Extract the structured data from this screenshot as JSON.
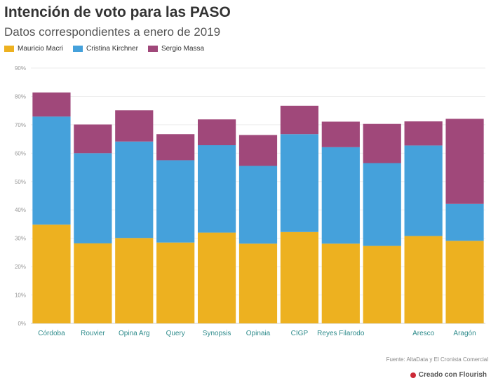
{
  "header": {
    "title": "Intención de voto para las PASO",
    "subtitle": "Datos correspondientes a enero de 2019"
  },
  "footer": {
    "source": "Fuente: AltaData y El Cronista Comercial",
    "flourish": "Creado con Flourish"
  },
  "colors": {
    "macri": "#edb120",
    "kirchner": "#45a1db",
    "massa": "#a0487a"
  },
  "chart_data": {
    "type": "bar",
    "stacked": true,
    "categories": [
      "Córdoba",
      "Rouvier",
      "Opina Arg",
      "Query",
      "Synopsis",
      "Opinaia",
      "CIGP",
      "Reyes Filarodo",
      "",
      "Aresco",
      "Aragón"
    ],
    "series": [
      {
        "name": "Mauricio Macri",
        "values": [
          34.8,
          28.2,
          30.1,
          28.5,
          32.0,
          28.1,
          32.2,
          28.1,
          27.3,
          30.8,
          29.1
        ]
      },
      {
        "name": "Cristina Kirchner",
        "values": [
          38.1,
          31.8,
          34.0,
          29.0,
          30.8,
          27.4,
          34.5,
          34.0,
          29.2,
          31.9,
          13.0
        ]
      },
      {
        "name": "Sergio Massa",
        "values": [
          8.5,
          10.1,
          11.0,
          9.2,
          9.1,
          10.9,
          10.0,
          9.0,
          13.8,
          8.5,
          30.0
        ]
      }
    ],
    "ylim": [
      0,
      90
    ],
    "yticks": [
      "0%",
      "10%",
      "20%",
      "30%",
      "40%",
      "50%",
      "60%",
      "70%",
      "80%",
      "90%"
    ],
    "grid": true,
    "legend": "top-left"
  }
}
